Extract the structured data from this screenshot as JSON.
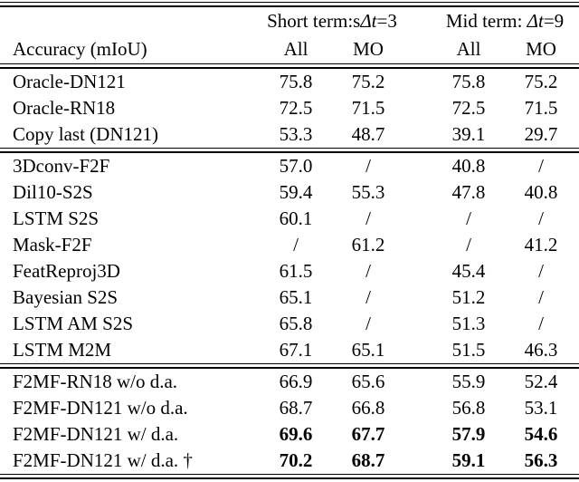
{
  "page": {
    "background": "#ffffff",
    "text_color": "#000000",
    "rule_color": "#000000"
  },
  "table": {
    "col_group_short": {
      "prefix": "Short term:s",
      "delta": "Δt",
      "suffix": "=3"
    },
    "col_group_mid": {
      "prefix": "Mid term: ",
      "delta": "Δt",
      "suffix": "=9"
    },
    "corner_label": "Accuracy (mIoU)",
    "subheaders": [
      "All",
      "MO",
      "All",
      "MO"
    ],
    "sections": [
      {
        "name": "oracle-baselines",
        "rows": [
          {
            "label": "Oracle-DN121",
            "values": [
              "75.8",
              "75.2",
              "75.8",
              "75.2"
            ],
            "bold_values": false
          },
          {
            "label": "Oracle-RN18",
            "values": [
              "72.5",
              "71.5",
              "72.5",
              "71.5"
            ],
            "bold_values": false
          },
          {
            "label": "Copy last (DN121)",
            "values": [
              "53.3",
              "48.7",
              "39.1",
              "29.7"
            ],
            "bold_values": false
          }
        ]
      },
      {
        "name": "prior-methods",
        "rows": [
          {
            "label": "3Dconv-F2F",
            "values": [
              "57.0",
              "/",
              "40.8",
              "/"
            ],
            "bold_values": false
          },
          {
            "label": "Dil10-S2S",
            "values": [
              "59.4",
              "55.3",
              "47.8",
              "40.8"
            ],
            "bold_values": false
          },
          {
            "label": "LSTM S2S",
            "values": [
              "60.1",
              "/",
              "/",
              "/"
            ],
            "bold_values": false
          },
          {
            "label": "Mask-F2F",
            "values": [
              "/",
              "61.2",
              "/",
              "41.2"
            ],
            "bold_values": false
          },
          {
            "label": "FeatReproj3D",
            "values": [
              "61.5",
              "/",
              "45.4",
              "/"
            ],
            "bold_values": false
          },
          {
            "label": "Bayesian S2S",
            "values": [
              "65.1",
              "/",
              "51.2",
              "/"
            ],
            "bold_values": false
          },
          {
            "label": "LSTM AM S2S",
            "values": [
              "65.8",
              "/",
              "51.3",
              "/"
            ],
            "bold_values": false
          },
          {
            "label": "LSTM M2M",
            "values": [
              "67.1",
              "65.1",
              "51.5",
              "46.3"
            ],
            "bold_values": false
          }
        ]
      },
      {
        "name": "f2mf-ours",
        "rows": [
          {
            "label": "F2MF-RN18 w/o d.a.",
            "values": [
              "66.9",
              "65.6",
              "55.9",
              "52.4"
            ],
            "bold_values": false
          },
          {
            "label": "F2MF-DN121 w/o d.a.",
            "values": [
              "68.7",
              "66.8",
              "56.8",
              "53.1"
            ],
            "bold_values": false
          },
          {
            "label": "F2MF-DN121 w/ d.a.",
            "values": [
              "69.6",
              "67.7",
              "57.9",
              "54.6"
            ],
            "bold_values": true
          },
          {
            "label": "F2MF-DN121 w/ d.a. †",
            "values": [
              "70.2",
              "68.7",
              "59.1",
              "56.3"
            ],
            "bold_values": true
          }
        ]
      }
    ]
  }
}
